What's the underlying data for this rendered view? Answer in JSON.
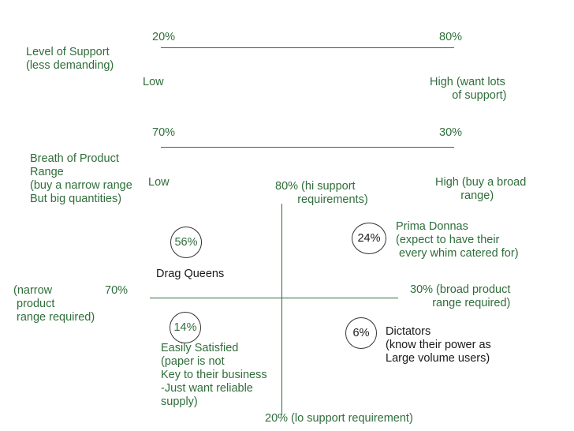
{
  "support_scale": {
    "left_pct": "20%",
    "right_pct": "80%",
    "label": "Level of Support\n(less demanding)",
    "low": "Low",
    "high": "High (want lots\n       of support)"
  },
  "range_scale": {
    "left_pct": "70%",
    "right_pct": "30%",
    "label": "Breath of Product\nRange\n(buy a narrow range\nBut big quantities)",
    "low": "Low",
    "high": "High (buy a broad\n        range)"
  },
  "axes": {
    "top": "80% (hi support\n       requirements)",
    "bottom": "20% (lo support requirement)",
    "left_label": "(narrow\n product\n range required)",
    "left_pct": "70%",
    "right": "30% (broad product\n       range required)"
  },
  "quadrants": {
    "top_left": {
      "pct": "56%",
      "name": "Drag Queens"
    },
    "top_right": {
      "pct": "24%",
      "name": "Prima Donnas\n(expect to have their\n every whim catered for)"
    },
    "bottom_left": {
      "pct": "14%",
      "name": "Easily Satisfied\n(paper is not\nKey to their business\n-Just want reliable\nsupply)"
    },
    "bottom_right": {
      "pct": "6%",
      "name": "Dictators\n(know their power as\nLarge volume users)"
    }
  }
}
